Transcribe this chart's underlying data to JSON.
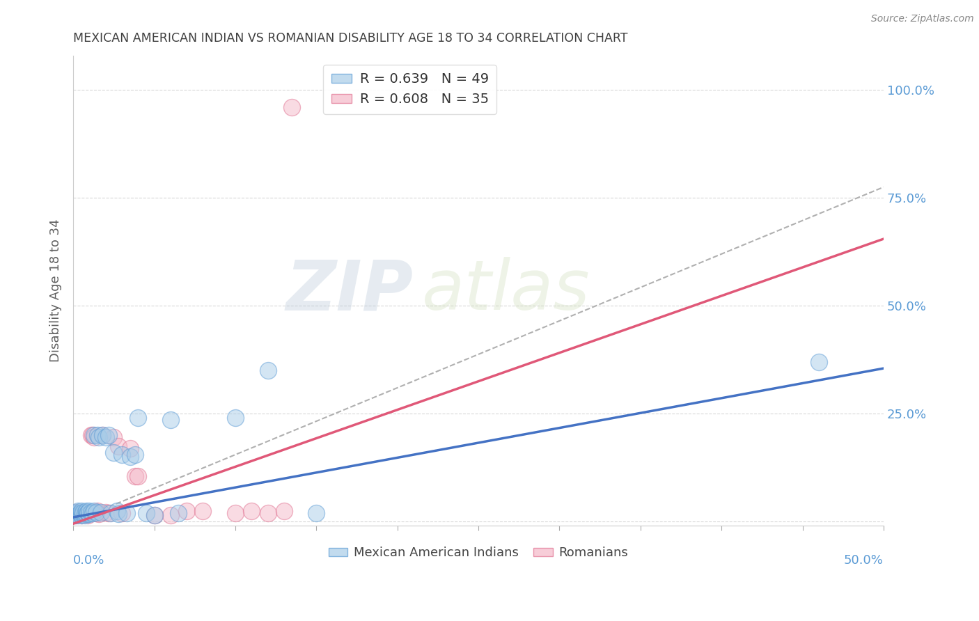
{
  "title": "MEXICAN AMERICAN INDIAN VS ROMANIAN DISABILITY AGE 18 TO 34 CORRELATION CHART",
  "source": "Source: ZipAtlas.com",
  "ylabel": "Disability Age 18 to 34",
  "ytick_labels": [
    "",
    "25.0%",
    "50.0%",
    "75.0%",
    "100.0%"
  ],
  "ytick_positions": [
    0.0,
    0.25,
    0.5,
    0.75,
    1.0
  ],
  "xlim": [
    0.0,
    0.5
  ],
  "ylim": [
    -0.01,
    1.08
  ],
  "blue_color": "#a8cce8",
  "pink_color": "#f4b8c8",
  "blue_edge_color": "#5b9bd5",
  "pink_edge_color": "#e07090",
  "blue_line_color": "#4472c4",
  "pink_line_color": "#e05878",
  "dashed_line_color": "#b0b0b0",
  "grid_color": "#d8d8d8",
  "background_color": "#ffffff",
  "title_color": "#404040",
  "source_color": "#888888",
  "axis_label_color": "#606060",
  "right_tick_color": "#5b9bd5",
  "watermark_color": "#d0e0f0",
  "watermark_alpha": 0.5,
  "mexican_x": [
    0.001,
    0.001,
    0.002,
    0.002,
    0.003,
    0.003,
    0.004,
    0.004,
    0.005,
    0.005,
    0.005,
    0.006,
    0.006,
    0.007,
    0.007,
    0.008,
    0.008,
    0.009,
    0.009,
    0.01,
    0.01,
    0.011,
    0.012,
    0.013,
    0.013,
    0.014,
    0.015,
    0.016,
    0.017,
    0.018,
    0.02,
    0.022,
    0.023,
    0.025,
    0.027,
    0.028,
    0.03,
    0.033,
    0.035,
    0.038,
    0.04,
    0.045,
    0.05,
    0.06,
    0.065,
    0.1,
    0.12,
    0.15,
    0.46
  ],
  "mexican_y": [
    0.015,
    0.02,
    0.018,
    0.022,
    0.015,
    0.025,
    0.018,
    0.02,
    0.015,
    0.02,
    0.025,
    0.018,
    0.022,
    0.015,
    0.02,
    0.018,
    0.025,
    0.02,
    0.022,
    0.018,
    0.025,
    0.022,
    0.02,
    0.2,
    0.025,
    0.022,
    0.2,
    0.195,
    0.022,
    0.2,
    0.195,
    0.2,
    0.02,
    0.16,
    0.025,
    0.018,
    0.155,
    0.02,
    0.15,
    0.155,
    0.24,
    0.02,
    0.015,
    0.235,
    0.02,
    0.24,
    0.35,
    0.02,
    0.37
  ],
  "romanian_x": [
    0.001,
    0.001,
    0.002,
    0.003,
    0.004,
    0.005,
    0.006,
    0.007,
    0.008,
    0.009,
    0.01,
    0.011,
    0.012,
    0.013,
    0.014,
    0.015,
    0.016,
    0.018,
    0.02,
    0.022,
    0.025,
    0.028,
    0.03,
    0.035,
    0.038,
    0.04,
    0.05,
    0.06,
    0.07,
    0.08,
    0.1,
    0.11,
    0.12,
    0.13,
    0.135
  ],
  "romanian_y": [
    0.015,
    0.02,
    0.022,
    0.018,
    0.02,
    0.015,
    0.02,
    0.018,
    0.022,
    0.015,
    0.02,
    0.2,
    0.2,
    0.195,
    0.02,
    0.025,
    0.018,
    0.2,
    0.022,
    0.02,
    0.195,
    0.175,
    0.02,
    0.17,
    0.105,
    0.105,
    0.015,
    0.015,
    0.025,
    0.025,
    0.02,
    0.025,
    0.02,
    0.025,
    0.96
  ],
  "blue_line_x0": 0.0,
  "blue_line_y0": 0.01,
  "blue_line_x1": 0.5,
  "blue_line_y1": 0.355,
  "pink_line_x0": 0.0,
  "pink_line_y0": -0.005,
  "pink_line_x1": 0.5,
  "pink_line_y1": 0.655,
  "dash_line_x0": 0.0,
  "dash_line_y0": 0.0,
  "dash_line_x1": 0.5,
  "dash_line_y1": 0.775
}
